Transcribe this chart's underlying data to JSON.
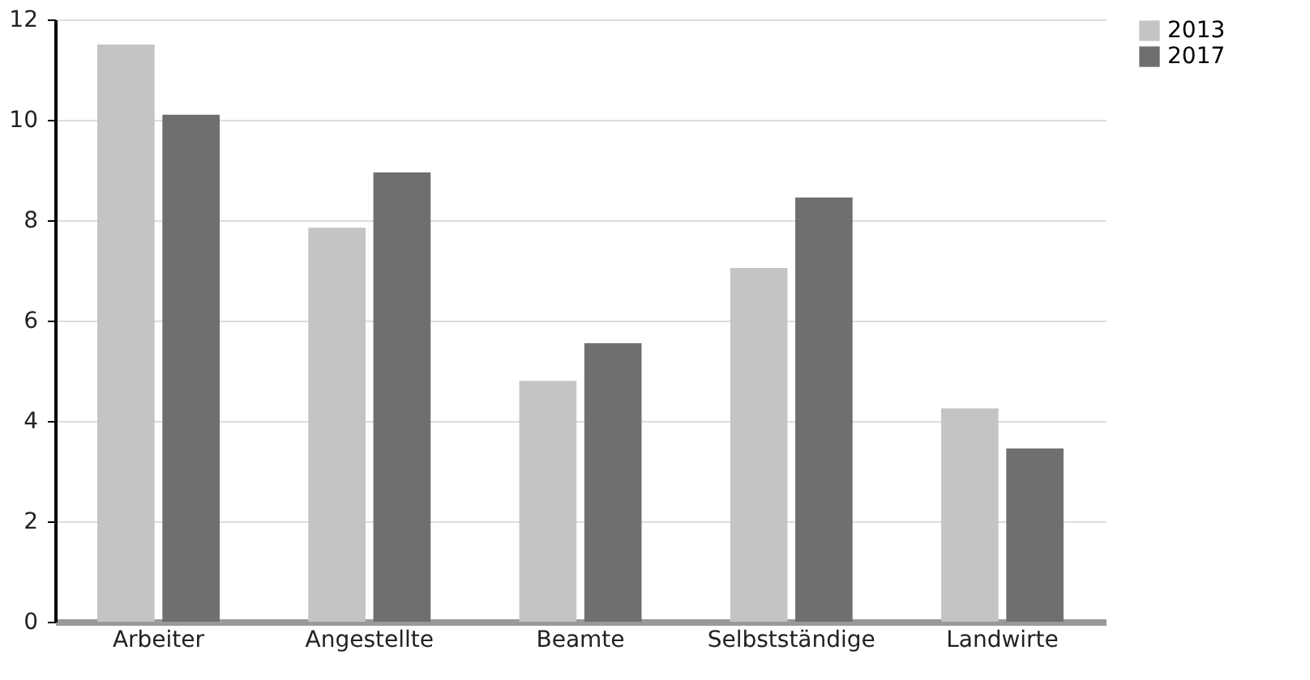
{
  "chart_data": {
    "type": "bar",
    "categories": [
      "Arbeiter",
      "Angestellte",
      "Beamte",
      "Selbstständige",
      "Landwirte"
    ],
    "series": [
      {
        "name": "2013",
        "color": "#c4c4c4",
        "values": [
          11.5,
          7.85,
          4.8,
          7.05,
          4.25
        ]
      },
      {
        "name": "2017",
        "color": "#6f6f6f",
        "values": [
          10.1,
          8.95,
          5.55,
          8.45,
          3.45
        ]
      }
    ],
    "ylim": [
      0,
      12
    ],
    "yticks": [
      0,
      2,
      4,
      6,
      8,
      10,
      12
    ],
    "grid": "y",
    "legend": "top right"
  }
}
